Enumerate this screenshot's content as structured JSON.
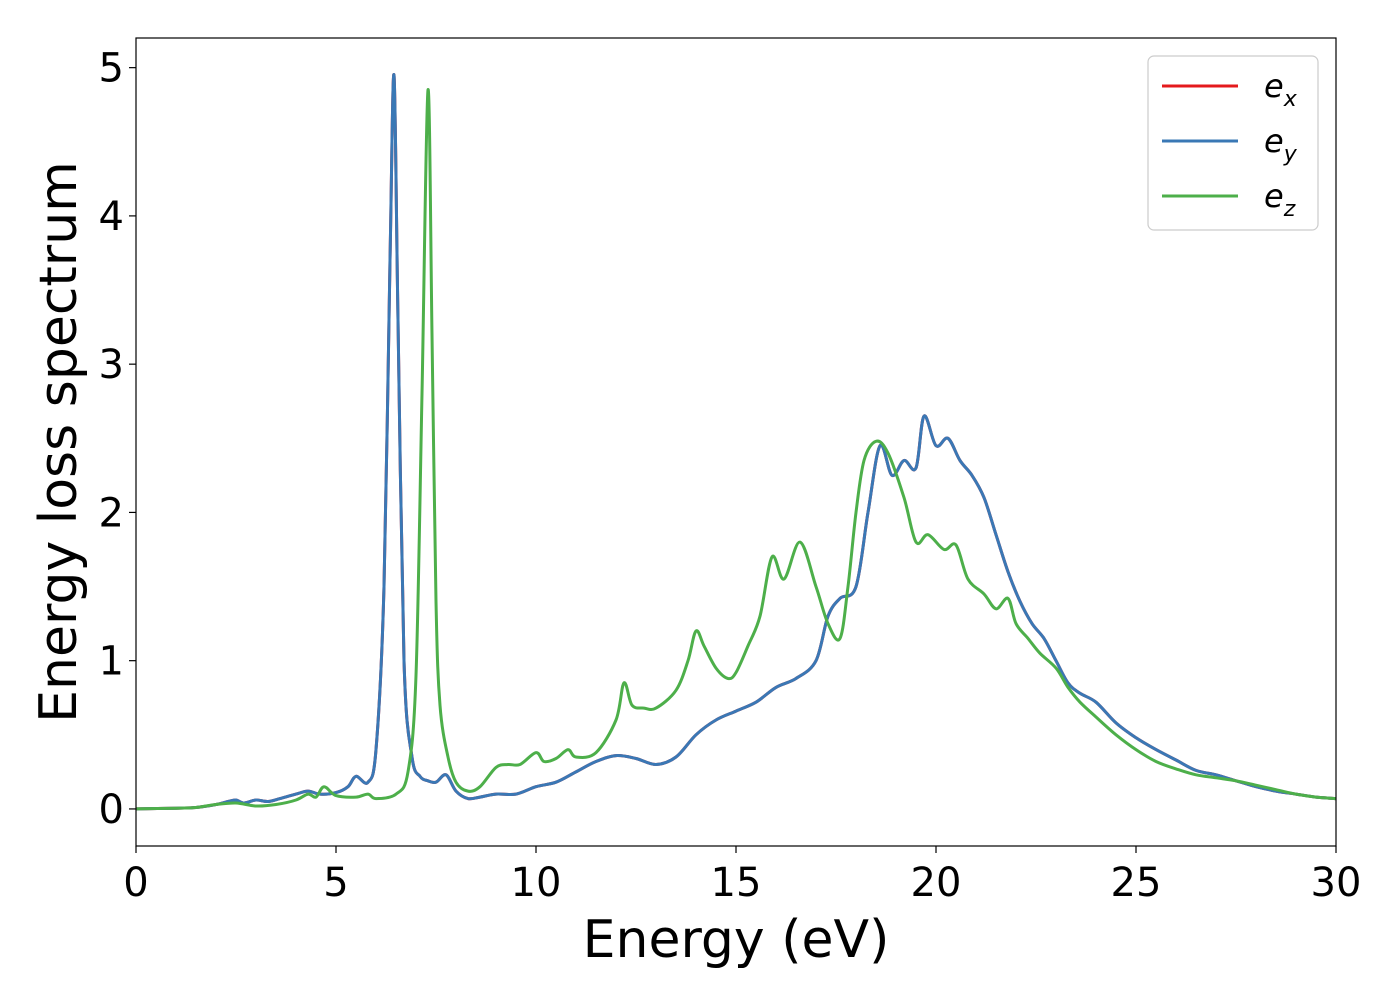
{
  "chart_data": {
    "type": "line",
    "title": "",
    "xlabel": "Energy (eV)",
    "ylabel": "Energy loss spectrum",
    "xlim": [
      0,
      30
    ],
    "ylim": [
      -0.25,
      5.2
    ],
    "xticks": [
      0,
      5,
      10,
      15,
      20,
      25,
      30
    ],
    "yticks": [
      0,
      1,
      2,
      3,
      4,
      5
    ],
    "grid": false,
    "legend": "top-right",
    "series": [
      {
        "name": "e",
        "subscript": "x",
        "color": "#e41a1c",
        "x": [
          0,
          1,
          1.5,
          2,
          2.3,
          2.5,
          2.7,
          3,
          3.3,
          3.6,
          4,
          4.3,
          4.6,
          5,
          5.3,
          5.5,
          5.8,
          6,
          6.2,
          6.35,
          6.45,
          6.55,
          6.7,
          6.9,
          7.1,
          7.3,
          7.5,
          7.75,
          8,
          8.3,
          8.6,
          9,
          9.5,
          10,
          10.5,
          11,
          11.5,
          12,
          12.5,
          13,
          13.5,
          14,
          14.5,
          15,
          15.5,
          16,
          16.5,
          17,
          17.3,
          17.6,
          18,
          18.3,
          18.6,
          18.9,
          19.2,
          19.5,
          19.7,
          20,
          20.3,
          20.6,
          20.9,
          21.2,
          21.5,
          21.8,
          22.1,
          22.4,
          22.7,
          23,
          23.3,
          23.6,
          24,
          24.5,
          25,
          25.5,
          26,
          26.5,
          27,
          27.5,
          28,
          28.5,
          29,
          29.5,
          30
        ],
        "y": [
          0,
          0.005,
          0.01,
          0.03,
          0.05,
          0.06,
          0.04,
          0.06,
          0.05,
          0.07,
          0.1,
          0.12,
          0.1,
          0.11,
          0.15,
          0.22,
          0.18,
          0.4,
          1.5,
          3.7,
          4.95,
          3.3,
          1.0,
          0.35,
          0.22,
          0.19,
          0.18,
          0.23,
          0.12,
          0.07,
          0.08,
          0.1,
          0.1,
          0.15,
          0.18,
          0.25,
          0.32,
          0.36,
          0.34,
          0.3,
          0.35,
          0.5,
          0.6,
          0.66,
          0.72,
          0.82,
          0.88,
          1.0,
          1.3,
          1.42,
          1.5,
          2.0,
          2.45,
          2.25,
          2.35,
          2.3,
          2.65,
          2.45,
          2.5,
          2.35,
          2.25,
          2.1,
          1.85,
          1.6,
          1.4,
          1.25,
          1.15,
          1.0,
          0.85,
          0.78,
          0.72,
          0.58,
          0.48,
          0.4,
          0.33,
          0.26,
          0.23,
          0.19,
          0.15,
          0.12,
          0.1,
          0.08,
          0.07
        ]
      },
      {
        "name": "e",
        "subscript": "y",
        "color": "#3a78b5",
        "x": [
          0,
          1,
          1.5,
          2,
          2.3,
          2.5,
          2.7,
          3,
          3.3,
          3.6,
          4,
          4.3,
          4.6,
          5,
          5.3,
          5.5,
          5.8,
          6,
          6.2,
          6.35,
          6.45,
          6.55,
          6.7,
          6.9,
          7.1,
          7.3,
          7.5,
          7.75,
          8,
          8.3,
          8.6,
          9,
          9.5,
          10,
          10.5,
          11,
          11.5,
          12,
          12.5,
          13,
          13.5,
          14,
          14.5,
          15,
          15.5,
          16,
          16.5,
          17,
          17.3,
          17.6,
          18,
          18.3,
          18.6,
          18.9,
          19.2,
          19.5,
          19.7,
          20,
          20.3,
          20.6,
          20.9,
          21.2,
          21.5,
          21.8,
          22.1,
          22.4,
          22.7,
          23,
          23.3,
          23.6,
          24,
          24.5,
          25,
          25.5,
          26,
          26.5,
          27,
          27.5,
          28,
          28.5,
          29,
          29.5,
          30
        ],
        "y": [
          0,
          0.005,
          0.01,
          0.03,
          0.05,
          0.06,
          0.04,
          0.06,
          0.05,
          0.07,
          0.1,
          0.12,
          0.1,
          0.11,
          0.15,
          0.22,
          0.18,
          0.4,
          1.5,
          3.7,
          4.95,
          3.3,
          1.0,
          0.35,
          0.22,
          0.19,
          0.18,
          0.23,
          0.12,
          0.07,
          0.08,
          0.1,
          0.1,
          0.15,
          0.18,
          0.25,
          0.32,
          0.36,
          0.34,
          0.3,
          0.35,
          0.5,
          0.6,
          0.66,
          0.72,
          0.82,
          0.88,
          1.0,
          1.3,
          1.42,
          1.5,
          2.0,
          2.45,
          2.25,
          2.35,
          2.3,
          2.65,
          2.45,
          2.5,
          2.35,
          2.25,
          2.1,
          1.85,
          1.6,
          1.4,
          1.25,
          1.15,
          1.0,
          0.85,
          0.78,
          0.72,
          0.58,
          0.48,
          0.4,
          0.33,
          0.26,
          0.23,
          0.19,
          0.15,
          0.12,
          0.1,
          0.08,
          0.07
        ]
      },
      {
        "name": "e",
        "subscript": "z",
        "color": "#4daf4a",
        "x": [
          0,
          1,
          1.5,
          2,
          2.5,
          3,
          3.5,
          4,
          4.3,
          4.5,
          4.7,
          5,
          5.5,
          5.8,
          6,
          6.5,
          6.8,
          7,
          7.15,
          7.3,
          7.4,
          7.5,
          7.6,
          7.8,
          8,
          8.3,
          8.6,
          9,
          9.3,
          9.6,
          10,
          10.2,
          10.5,
          10.8,
          11,
          11.5,
          12,
          12.2,
          12.4,
          12.7,
          13,
          13.5,
          13.8,
          14,
          14.2,
          14.5,
          14.8,
          15,
          15.3,
          15.6,
          15.9,
          16.2,
          16.6,
          17,
          17.3,
          17.6,
          17.8,
          18,
          18.2,
          18.5,
          18.8,
          19.2,
          19.5,
          19.8,
          20.2,
          20.5,
          20.8,
          21.2,
          21.5,
          21.8,
          22,
          22.3,
          22.6,
          23,
          23.3,
          23.6,
          24,
          24.5,
          25,
          25.5,
          26,
          26.5,
          27,
          27.5,
          28,
          28.5,
          29,
          29.5,
          30
        ],
        "y": [
          0,
          0.005,
          0.01,
          0.03,
          0.04,
          0.02,
          0.03,
          0.06,
          0.1,
          0.08,
          0.15,
          0.09,
          0.08,
          0.1,
          0.07,
          0.1,
          0.25,
          0.9,
          2.8,
          4.85,
          3.2,
          1.4,
          0.7,
          0.35,
          0.18,
          0.12,
          0.15,
          0.28,
          0.3,
          0.3,
          0.38,
          0.32,
          0.34,
          0.4,
          0.35,
          0.38,
          0.6,
          0.85,
          0.7,
          0.68,
          0.68,
          0.8,
          1.0,
          1.2,
          1.1,
          0.95,
          0.88,
          0.92,
          1.1,
          1.3,
          1.7,
          1.55,
          1.8,
          1.5,
          1.25,
          1.15,
          1.5,
          2.0,
          2.35,
          2.48,
          2.4,
          2.1,
          1.8,
          1.85,
          1.75,
          1.78,
          1.55,
          1.45,
          1.35,
          1.42,
          1.25,
          1.15,
          1.05,
          0.95,
          0.82,
          0.72,
          0.62,
          0.5,
          0.4,
          0.32,
          0.27,
          0.23,
          0.21,
          0.19,
          0.16,
          0.13,
          0.1,
          0.08,
          0.07
        ]
      }
    ]
  }
}
